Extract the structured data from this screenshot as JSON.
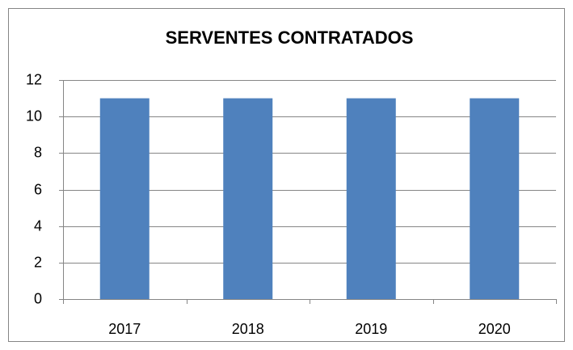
{
  "chart_data": {
    "type": "bar",
    "title": "SERVENTES CONTRATADOS",
    "categories": [
      "2017",
      "2018",
      "2019",
      "2020"
    ],
    "values": [
      11,
      11,
      11,
      11
    ],
    "color": "#4f81bd",
    "ylim": [
      0,
      12
    ],
    "yticks": [
      0,
      2,
      4,
      6,
      8,
      10,
      12
    ],
    "grid": true
  }
}
